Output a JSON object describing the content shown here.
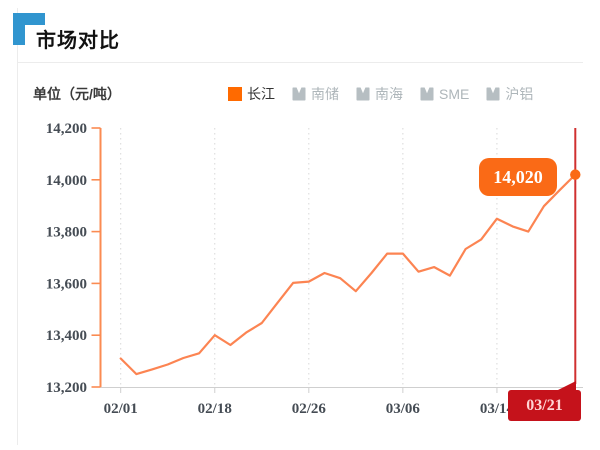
{
  "header": {
    "title": "市场对比"
  },
  "chart_header": {
    "unit_label": "单位（元/吨）"
  },
  "legend": {
    "active_color": "#ff6a00",
    "inactive_color": "#b6bec2",
    "active_text_color": "#333333",
    "inactive_text_color": "#aeb6ba",
    "items": [
      {
        "label": "长江",
        "active": true
      },
      {
        "label": "南储",
        "active": false
      },
      {
        "label": "南海",
        "active": false
      },
      {
        "label": "SME",
        "active": false
      },
      {
        "label": "沪铝",
        "active": false
      }
    ]
  },
  "chart_data": {
    "type": "line",
    "title": "市场对比",
    "ylabel": "单位（元/吨）",
    "ylim": [
      13200,
      14200
    ],
    "y_tick_labels": [
      "14,200",
      "14,000",
      "13,800",
      "13,600",
      "13,400",
      "13,200"
    ],
    "x_tick_labels": [
      "02/01",
      "02/18",
      "02/26",
      "03/06",
      "03/14",
      "03/21"
    ],
    "x_tick_indices": [
      0,
      6,
      12,
      18,
      24,
      29
    ],
    "grid": "vertical-dotted-at-labeled-ticks",
    "legend_position": "top-right",
    "series": [
      {
        "name": "长江",
        "color": "#fc8452",
        "values": [
          13310,
          13250,
          13268,
          13287,
          13312,
          13330,
          13400,
          13362,
          13410,
          13447,
          13525,
          13602,
          13607,
          13640,
          13620,
          13570,
          13640,
          13715,
          13715,
          13645,
          13663,
          13630,
          13733,
          13770,
          13850,
          13820,
          13800,
          13898,
          13960,
          14020
        ]
      }
    ],
    "annotations": {
      "last_value_label": "14,020",
      "highlight_date_label": "03/21",
      "marker_color": "#fa6a16",
      "pointer_line_color": "#d03030",
      "pointer_box_color": "#c5121b",
      "axis_color": "#fb8b52",
      "axis_text_color": "#454c54"
    }
  }
}
